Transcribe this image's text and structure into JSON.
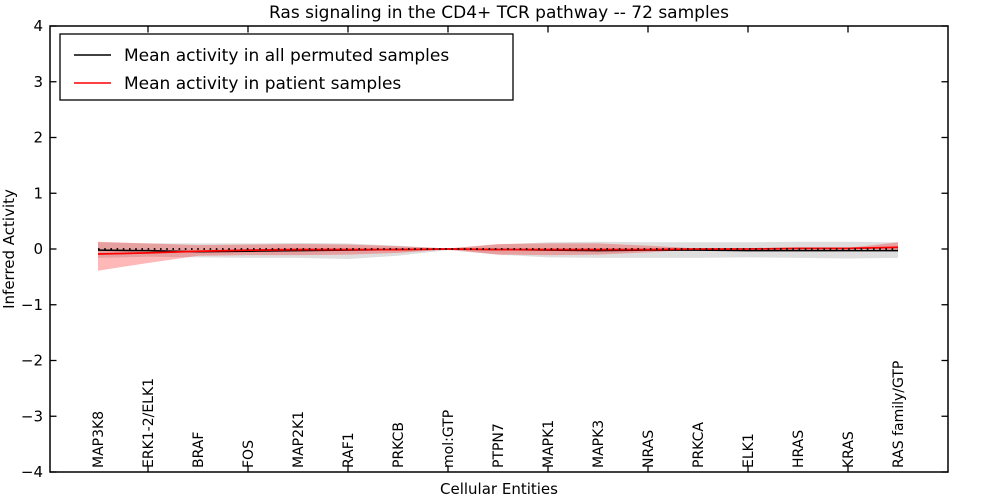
{
  "chart_data": {
    "type": "line",
    "title": "Ras signaling in the CD4+ TCR pathway -- 72 samples",
    "xlabel": "Cellular Entities",
    "ylabel": "Inferred Activity",
    "ylim": [
      -4,
      4
    ],
    "yticks": [
      4,
      3,
      2,
      1,
      0,
      -1,
      -2,
      -3,
      -4
    ],
    "grid": false,
    "legend_position": "upper left",
    "categories": [
      "MAP3K8",
      "ERK1-2/ELK1",
      "BRAF",
      "FOS",
      "MAP2K1",
      "RAF1",
      "PRKCB",
      "mol:GTP",
      "PTPN7",
      "MAPK1",
      "MAPK3",
      "NRAS",
      "PRKCA",
      "ELK1",
      "HRAS",
      "KRAS",
      "RAS family/GTP"
    ],
    "x_tick_indices": [
      1,
      3,
      5,
      7,
      9,
      11,
      13,
      15
    ],
    "series": [
      {
        "name": "Mean activity in all permuted samples",
        "color": "#000000",
        "style": "solid",
        "values": [
          -0.02,
          -0.03,
          -0.05,
          -0.04,
          -0.03,
          -0.02,
          -0.01,
          0.0,
          -0.01,
          -0.02,
          -0.03,
          -0.02,
          -0.02,
          -0.03,
          -0.03,
          -0.03,
          -0.03
        ]
      },
      {
        "name": "Mean activity in patient samples",
        "color": "#ff0000",
        "style": "solid",
        "values": [
          -0.09,
          -0.07,
          -0.04,
          -0.02,
          -0.01,
          -0.01,
          -0.01,
          0.0,
          -0.01,
          -0.01,
          -0.01,
          -0.01,
          0.0,
          0.0,
          0.01,
          0.01,
          0.03
        ]
      }
    ],
    "bands": [
      {
        "name": "permuted-samples-std-band",
        "color": "#000000",
        "opacity": 0.13,
        "upper": [
          0.12,
          0.1,
          0.1,
          0.1,
          0.11,
          0.1,
          0.06,
          0.01,
          0.08,
          0.12,
          0.13,
          0.12,
          0.12,
          0.12,
          0.13,
          0.13,
          0.12
        ],
        "lower": [
          -0.16,
          -0.14,
          -0.15,
          -0.16,
          -0.16,
          -0.18,
          -0.12,
          -0.02,
          -0.1,
          -0.15,
          -0.16,
          -0.16,
          -0.16,
          -0.15,
          -0.16,
          -0.17,
          -0.16
        ]
      },
      {
        "name": "patient-samples-std-band",
        "color": "#ff0000",
        "opacity": 0.28,
        "upper": [
          0.13,
          0.1,
          0.07,
          0.08,
          0.09,
          0.08,
          0.05,
          0.01,
          0.09,
          0.1,
          0.1,
          0.06,
          0.01,
          0.01,
          0.01,
          0.02,
          0.12
        ],
        "lower": [
          -0.39,
          -0.25,
          -0.12,
          -0.11,
          -0.11,
          -0.1,
          -0.07,
          -0.01,
          -0.1,
          -0.11,
          -0.1,
          -0.06,
          -0.01,
          -0.01,
          0.0,
          0.0,
          -0.02
        ]
      }
    ],
    "zero_line": {
      "value": 0,
      "style": "dotted",
      "color": "#000000"
    }
  },
  "legend": {
    "items": [
      {
        "label": "Mean activity in all permuted samples",
        "color": "#000000"
      },
      {
        "label": "Mean activity in patient samples",
        "color": "#ff0000"
      }
    ]
  }
}
